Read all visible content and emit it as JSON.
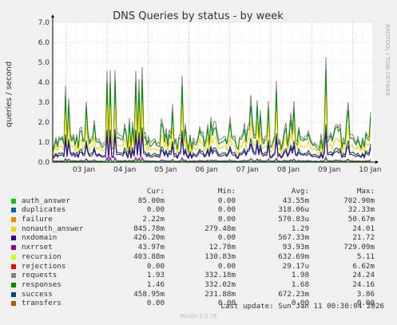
{
  "chart_data": {
    "type": "line",
    "title": "DNS Queries by status - by week",
    "ylabel": "queries / second",
    "side_label": "RRDTOOL / TOBI OETIKER",
    "ylim": [
      0,
      7
    ],
    "y_ticks": [
      "0.0",
      "1.0",
      "2.0",
      "3.0",
      "4.0",
      "5.0",
      "6.0",
      "7.0"
    ],
    "x_ticks": [
      "03 Jan",
      "04 Jan",
      "05 Jan",
      "06 Jan",
      "07 Jan",
      "08 Jan",
      "09 Jan",
      "10 Jan"
    ],
    "grid": true,
    "columns": {
      "cur": "Cur:",
      "min": "Min:",
      "avg": "Avg:",
      "max": "Max:"
    },
    "series": [
      {
        "name": "auth_answer",
        "color": "#00cc00",
        "cur": "85.00m",
        "min": "0.00",
        "avg": "43.55m",
        "max": "702.90m"
      },
      {
        "name": "duplicates",
        "color": "#0066b3",
        "cur": "0.00",
        "min": "0.00",
        "avg": "318.06u",
        "max": "32.33m"
      },
      {
        "name": "failure",
        "color": "#ff8000",
        "cur": "2.22m",
        "min": "0.00",
        "avg": "570.83u",
        "max": "50.67m"
      },
      {
        "name": "nonauth_answer",
        "color": "#ffcc00",
        "cur": "845.78m",
        "min": "279.48m",
        "avg": "1.29",
        "max": "24.01"
      },
      {
        "name": "nxdomain",
        "color": "#330099",
        "cur": "426.20m",
        "min": "0.00",
        "avg": "567.33m",
        "max": "21.72"
      },
      {
        "name": "nxrrset",
        "color": "#990099",
        "cur": "43.97m",
        "min": "12.78m",
        "avg": "93.93m",
        "max": "729.09m"
      },
      {
        "name": "recursion",
        "color": "#ccff00",
        "cur": "403.88m",
        "min": "130.83m",
        "avg": "632.69m",
        "max": "5.11"
      },
      {
        "name": "rejections",
        "color": "#ff0000",
        "cur": "0.00",
        "min": "0.00",
        "avg": "29.17u",
        "max": "6.62m"
      },
      {
        "name": "requests",
        "color": "#808080",
        "cur": "1.93",
        "min": "332.18m",
        "avg": "1.98",
        "max": "24.24"
      },
      {
        "name": "responses",
        "color": "#008f00",
        "cur": "1.46",
        "min": "332.02m",
        "avg": "1.68",
        "max": "24.16"
      },
      {
        "name": "success",
        "color": "#00487d",
        "cur": "458.95m",
        "min": "231.88m",
        "avg": "672.23m",
        "max": "3.86"
      },
      {
        "name": "transfers",
        "color": "#b35a00",
        "cur": "0.00",
        "min": "0.00",
        "avg": "0.00",
        "max": "0.00"
      }
    ],
    "last_update": "Last update:  Sun Jan 11 00:30:04 2026",
    "footer": "Munin 2.0.76"
  }
}
